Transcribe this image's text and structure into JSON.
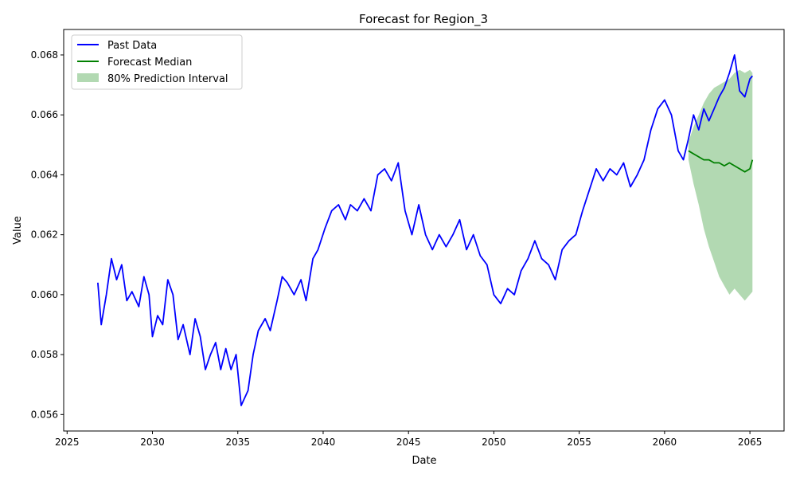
{
  "chart_data": {
    "type": "line",
    "title": "Forecast for Region_3",
    "xlabel": "Date",
    "ylabel": "Value",
    "xlim": [
      2024.8,
      2067.0
    ],
    "ylim": [
      0.05545,
      0.06885
    ],
    "x_ticks": [
      2025,
      2030,
      2035,
      2040,
      2045,
      2050,
      2055,
      2060,
      2065
    ],
    "y_ticks": [
      0.056,
      0.058,
      0.06,
      0.062,
      0.064,
      0.066,
      0.068
    ],
    "grid": false,
    "legend_position": "top-left",
    "colors": {
      "past": "#0000ff",
      "median": "#008000",
      "interval": "#008000"
    },
    "legend": [
      {
        "label": "Past Data",
        "kind": "line",
        "color": "#0000ff"
      },
      {
        "label": "Forecast Median",
        "kind": "line",
        "color": "#008000"
      },
      {
        "label": "80% Prediction Interval",
        "kind": "area",
        "color": "#008000"
      }
    ],
    "series": [
      {
        "name": "Past Data",
        "type": "line",
        "color": "#0000ff",
        "x": [
          2026.8,
          2027.0,
          2027.3,
          2027.6,
          2027.9,
          2028.2,
          2028.5,
          2028.8,
          2029.2,
          2029.5,
          2029.8,
          2030.0,
          2030.3,
          2030.6,
          2030.9,
          2031.2,
          2031.5,
          2031.8,
          2032.2,
          2032.5,
          2032.8,
          2033.1,
          2033.4,
          2033.7,
          2034.0,
          2034.3,
          2034.6,
          2034.9,
          2035.2,
          2035.6,
          2035.9,
          2036.2,
          2036.6,
          2036.9,
          2037.3,
          2037.6,
          2037.9,
          2038.3,
          2038.7,
          2039.0,
          2039.4,
          2039.7,
          2040.1,
          2040.5,
          2040.9,
          2041.3,
          2041.6,
          2042.0,
          2042.4,
          2042.8,
          2043.2,
          2043.6,
          2044.0,
          2044.4,
          2044.8,
          2045.2,
          2045.6,
          2046.0,
          2046.4,
          2046.8,
          2047.2,
          2047.6,
          2048.0,
          2048.4,
          2048.8,
          2049.2,
          2049.6,
          2050.0,
          2050.4,
          2050.8,
          2051.2,
          2051.6,
          2052.0,
          2052.4,
          2052.8,
          2053.2,
          2053.6,
          2054.0,
          2054.4,
          2054.8,
          2055.2,
          2055.6,
          2056.0,
          2056.4,
          2056.8,
          2057.2,
          2057.6,
          2058.0,
          2058.4,
          2058.8,
          2059.2,
          2059.6,
          2060.0,
          2060.4,
          2060.8,
          2061.1,
          2061.4,
          2061.7,
          2062.0,
          2062.3,
          2062.6,
          2062.9,
          2063.2,
          2063.5,
          2063.8,
          2064.1,
          2064.4,
          2064.7,
          2065.0,
          2065.15
        ],
        "values": [
          0.0604,
          0.059,
          0.06,
          0.0612,
          0.0605,
          0.061,
          0.0598,
          0.0601,
          0.0596,
          0.0606,
          0.06,
          0.0586,
          0.0593,
          0.059,
          0.0605,
          0.06,
          0.0585,
          0.059,
          0.058,
          0.0592,
          0.0586,
          0.0575,
          0.058,
          0.0584,
          0.0575,
          0.0582,
          0.0575,
          0.058,
          0.0563,
          0.0568,
          0.058,
          0.0588,
          0.0592,
          0.0588,
          0.0598,
          0.0606,
          0.0604,
          0.06,
          0.0605,
          0.0598,
          0.0612,
          0.0615,
          0.0622,
          0.0628,
          0.063,
          0.0625,
          0.063,
          0.0628,
          0.0632,
          0.0628,
          0.064,
          0.0642,
          0.0638,
          0.0644,
          0.0628,
          0.062,
          0.063,
          0.062,
          0.0615,
          0.062,
          0.0616,
          0.062,
          0.0625,
          0.0615,
          0.062,
          0.0613,
          0.061,
          0.06,
          0.0597,
          0.0602,
          0.06,
          0.0608,
          0.0612,
          0.0618,
          0.0612,
          0.061,
          0.0605,
          0.0615,
          0.0618,
          0.062,
          0.0628,
          0.0635,
          0.0642,
          0.0638,
          0.0642,
          0.064,
          0.0644,
          0.0636,
          0.064,
          0.0645,
          0.0655,
          0.0662,
          0.0665,
          0.066,
          0.0648,
          0.0645,
          0.0652,
          0.066,
          0.0655,
          0.0662,
          0.0658,
          0.0662,
          0.0666,
          0.0669,
          0.0674,
          0.068,
          0.0668,
          0.0666,
          0.0672,
          0.0673
        ]
      },
      {
        "name": "Forecast Median",
        "type": "line",
        "color": "#008000",
        "x": [
          2061.4,
          2061.7,
          2062.0,
          2062.3,
          2062.6,
          2062.9,
          2063.2,
          2063.5,
          2063.8,
          2064.1,
          2064.4,
          2064.7,
          2065.0,
          2065.15
        ],
        "values": [
          0.0648,
          0.0647,
          0.0646,
          0.0645,
          0.0645,
          0.0644,
          0.0644,
          0.0643,
          0.0644,
          0.0643,
          0.0642,
          0.0641,
          0.0642,
          0.0645
        ]
      },
      {
        "name": "80% Prediction Interval",
        "type": "area",
        "color": "#008000",
        "x": [
          2061.4,
          2061.7,
          2062.0,
          2062.3,
          2062.6,
          2062.9,
          2063.2,
          2063.5,
          2063.8,
          2064.1,
          2064.4,
          2064.7,
          2065.0,
          2065.15
        ],
        "lower": [
          0.0645,
          0.0637,
          0.063,
          0.0622,
          0.0616,
          0.0611,
          0.0606,
          0.0603,
          0.06,
          0.0602,
          0.06,
          0.0598,
          0.06,
          0.0601
        ],
        "upper": [
          0.0651,
          0.0656,
          0.066,
          0.0664,
          0.0667,
          0.0669,
          0.067,
          0.0671,
          0.0672,
          0.0674,
          0.0675,
          0.0674,
          0.0675,
          0.0674
        ]
      }
    ]
  }
}
